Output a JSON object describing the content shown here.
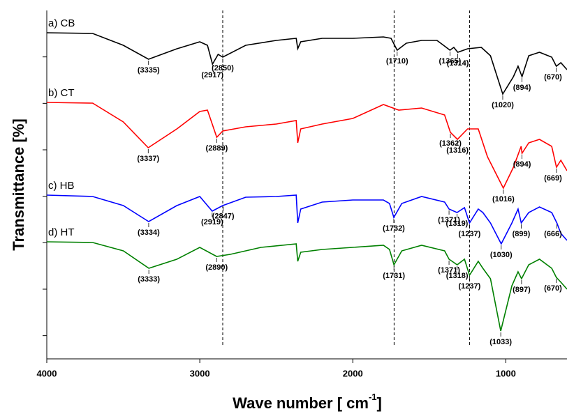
{
  "chart_data": {
    "type": "line",
    "xlabel": [
      "Wave number [ cm",
      "-1",
      "]"
    ],
    "ylabel": "Transmittance [%]",
    "xlim": [
      4000,
      600
    ],
    "xticks": [
      4000,
      3000,
      2000,
      1000
    ],
    "ylim": [
      0,
      15
    ],
    "yticks": [
      1,
      3,
      5,
      7,
      9,
      11,
      13
    ],
    "vlines": [
      2850,
      1730,
      1237
    ],
    "series": [
      {
        "name": "a) CB",
        "color": "#000000",
        "x": [
          4000,
          3700,
          3500,
          3335,
          3150,
          3000,
          2950,
          2917,
          2880,
          2850,
          2700,
          2500,
          2370,
          2360,
          2340,
          2200,
          2000,
          1800,
          1750,
          1710,
          1650,
          1550,
          1450,
          1365,
          1340,
          1314,
          1250,
          1160,
          1100,
          1020,
          950,
          920,
          894,
          850,
          780,
          700,
          670,
          640,
          600
        ],
        "values": [
          14.04,
          14.01,
          13.5,
          12.9,
          13.35,
          13.65,
          13.5,
          12.69,
          13.11,
          12.99,
          13.5,
          13.71,
          13.8,
          13.35,
          13.65,
          13.8,
          13.8,
          13.86,
          13.8,
          13.29,
          13.59,
          13.71,
          13.71,
          13.29,
          13.41,
          13.2,
          13.35,
          13.41,
          13.05,
          11.4,
          12.15,
          12.6,
          12.15,
          13.05,
          13.2,
          12.99,
          12.6,
          12.75,
          12.45
        ],
        "peaks": [
          {
            "x": 3335,
            "label": "(3335)"
          },
          {
            "x": 2917,
            "label": "(2917)"
          },
          {
            "x": 2850,
            "label": "(2850)"
          },
          {
            "x": 1710,
            "label": "(1710)"
          },
          {
            "x": 1365,
            "label": "(1365)"
          },
          {
            "x": 1314,
            "label": "(1314)"
          },
          {
            "x": 1020,
            "label": "(1020)"
          },
          {
            "x": 894,
            "label": "(894)"
          },
          {
            "x": 670,
            "label": "(670)"
          }
        ]
      },
      {
        "name": "b) CT",
        "color": "#ff0000",
        "x": [
          4000,
          3700,
          3500,
          3337,
          3150,
          3000,
          2950,
          2889,
          2850,
          2700,
          2500,
          2370,
          2360,
          2340,
          2200,
          2000,
          1800,
          1700,
          1550,
          1400,
          1362,
          1316,
          1250,
          1180,
          1150,
          1120,
          1016,
          950,
          900,
          894,
          850,
          780,
          700,
          669,
          640,
          600
        ],
        "values": [
          11.04,
          11.01,
          10.2,
          9.09,
          9.9,
          10.65,
          10.71,
          9.54,
          9.81,
          9.99,
          10.11,
          10.26,
          9.3,
          9.9,
          10.11,
          10.35,
          10.95,
          10.71,
          10.8,
          10.5,
          9.75,
          9.45,
          9.9,
          9.9,
          9.3,
          8.7,
          7.35,
          8.25,
          9.15,
          8.85,
          9.3,
          9.45,
          9.15,
          8.25,
          8.55,
          8.1
        ],
        "peaks": [
          {
            "x": 3337,
            "label": "(3337)"
          },
          {
            "x": 2889,
            "label": "(2889)"
          },
          {
            "x": 1362,
            "label": "(1362)"
          },
          {
            "x": 1316,
            "label": "(1316)"
          },
          {
            "x": 1016,
            "label": "(1016)"
          },
          {
            "x": 894,
            "label": "(894)"
          },
          {
            "x": 669,
            "label": "(669)"
          }
        ]
      },
      {
        "name": "c) HB",
        "color": "#0000ff",
        "x": [
          4000,
          3700,
          3500,
          3334,
          3150,
          3000,
          2919,
          2850,
          2700,
          2500,
          2370,
          2360,
          2340,
          2200,
          2000,
          1800,
          1760,
          1732,
          1680,
          1550,
          1400,
          1371,
          1319,
          1270,
          1237,
          1180,
          1150,
          1100,
          1030,
          960,
          920,
          899,
          850,
          780,
          700,
          666,
          640,
          600
        ],
        "values": [
          7.05,
          6.99,
          6.6,
          5.91,
          6.6,
          6.99,
          6.36,
          6.6,
          6.96,
          6.99,
          7.05,
          5.85,
          6.45,
          6.75,
          6.84,
          6.84,
          6.69,
          6.09,
          6.69,
          6.99,
          6.75,
          6.45,
          6.3,
          6.51,
          5.85,
          6.45,
          6.3,
          5.85,
          4.95,
          5.85,
          6.45,
          5.85,
          6.3,
          6.54,
          6.3,
          5.85,
          5.4,
          5.1
        ],
        "peaks": [
          {
            "x": 3334,
            "label": "(3334)"
          },
          {
            "x": 2919,
            "label": "(2919)"
          },
          {
            "x": 2847,
            "label": "(2847)"
          },
          {
            "x": 1732,
            "label": "(1732)"
          },
          {
            "x": 1371,
            "label": "(1371)"
          },
          {
            "x": 1319,
            "label": "(1319)"
          },
          {
            "x": 1237,
            "label": "(1237)"
          },
          {
            "x": 1030,
            "label": "(1030)"
          },
          {
            "x": 899,
            "label": "(899)"
          },
          {
            "x": 666,
            "label": "(666)"
          }
        ]
      },
      {
        "name": "d) HT",
        "color": "#008000",
        "x": [
          4000,
          3700,
          3500,
          3333,
          3150,
          3000,
          2890,
          2800,
          2600,
          2370,
          2360,
          2340,
          2200,
          2000,
          1800,
          1760,
          1731,
          1680,
          1550,
          1400,
          1371,
          1318,
          1270,
          1237,
          1180,
          1150,
          1100,
          1033,
          960,
          920,
          897,
          850,
          780,
          700,
          670,
          640,
          600
        ],
        "values": [
          5.04,
          5.01,
          4.65,
          3.9,
          4.29,
          4.8,
          4.41,
          4.5,
          4.8,
          4.95,
          4.2,
          4.59,
          4.71,
          4.8,
          4.89,
          4.71,
          4.05,
          4.65,
          4.89,
          4.65,
          4.29,
          4.05,
          4.29,
          3.6,
          4.2,
          3.9,
          3.45,
          1.2,
          3.15,
          3.75,
          3.45,
          4.05,
          4.29,
          3.9,
          3.51,
          3.3,
          3.0
        ],
        "peaks": [
          {
            "x": 3333,
            "label": "(3333)"
          },
          {
            "x": 2890,
            "label": "(2890)"
          },
          {
            "x": 1731,
            "label": "(1731)"
          },
          {
            "x": 1371,
            "label": "(1371)"
          },
          {
            "x": 1318,
            "label": "(1318)"
          },
          {
            "x": 1237,
            "label": "(1237)"
          },
          {
            "x": 1033,
            "label": "(1033)"
          },
          {
            "x": 897,
            "label": "(897)"
          },
          {
            "x": 670,
            "label": "(670)"
          }
        ]
      }
    ]
  }
}
